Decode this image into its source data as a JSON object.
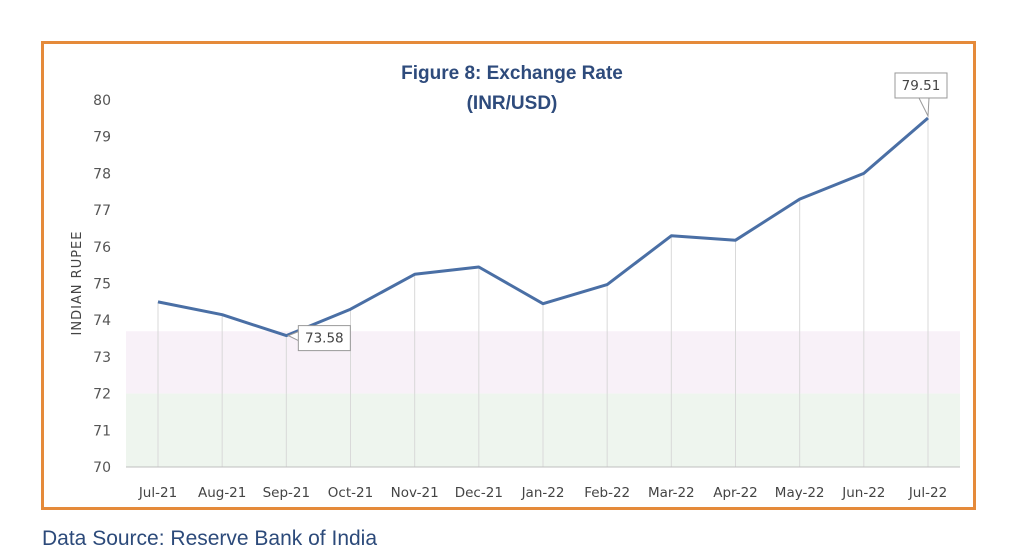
{
  "source_text": "Data Source: Reserve Bank of India",
  "colors": {
    "frame": "#e58a3a",
    "line": "#4a6fa5",
    "title": "#2e4b7c",
    "band_pink": "#f8f1f8",
    "band_green": "#eef5ee"
  },
  "chart_data": {
    "type": "line",
    "title": "Figure 8: Exchange Rate",
    "subtitle": "(INR/USD)",
    "xlabel": "",
    "ylabel": "INDIAN RUPEE",
    "categories": [
      "Jul-21",
      "Aug-21",
      "Sep-21",
      "Oct-21",
      "Nov-21",
      "Dec-21",
      "Jan-22",
      "Feb-22",
      "Mar-22",
      "Apr-22",
      "May-22",
      "Jun-22",
      "Jul-22"
    ],
    "series": [
      {
        "values": [
          74.5,
          74.15,
          73.58,
          74.3,
          75.25,
          75.45,
          74.45,
          74.97,
          76.3,
          76.18,
          77.3,
          78.0,
          79.51
        ]
      }
    ],
    "ylim": [
      70,
      80
    ],
    "yticks": [
      70,
      71,
      72,
      73,
      74,
      75,
      76,
      77,
      78,
      79,
      80
    ],
    "data_labels": [
      {
        "category": "Sep-21",
        "text": "73.58"
      },
      {
        "category": "Jul-22",
        "text": "79.51"
      }
    ],
    "grid": "vertical"
  }
}
